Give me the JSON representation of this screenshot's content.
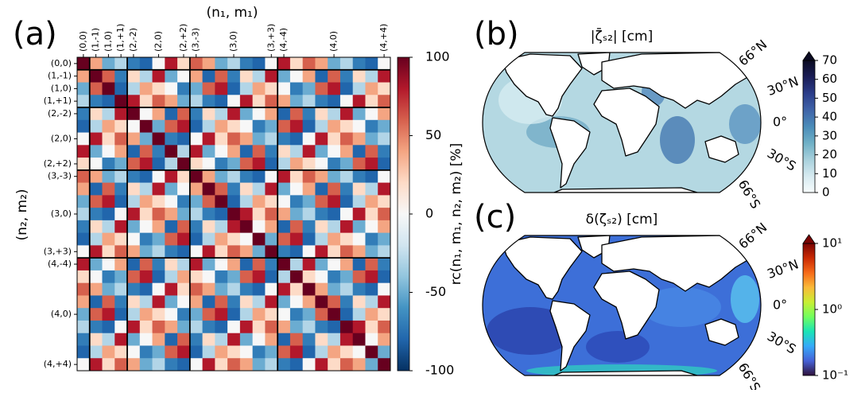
{
  "chart_data": [
    {
      "type": "heatmap",
      "panel": "(a)",
      "x_label": "(n₁, m₁)",
      "y_label": "(n₂, m₂)",
      "categories": [
        "(0,0)",
        "(1,-1)",
        "(1,0)",
        "(1,+1)",
        "(2,-2)",
        null,
        "(2,0)",
        null,
        "(2,+2)",
        "(3,-3)",
        null,
        null,
        "(3,0)",
        null,
        null,
        "(3,+3)",
        "(4,-4)",
        null,
        null,
        null,
        "(4,0)",
        null,
        null,
        null,
        "(4,+4)"
      ],
      "z": [
        [
          100,
          40,
          -50,
          -30,
          -70,
          -80,
          0,
          80,
          20,
          60,
          40,
          -50,
          -30,
          -70,
          -80,
          0,
          80,
          20,
          60,
          40,
          -50,
          -30,
          -70,
          -80,
          0
        ],
        [
          40,
          100,
          60,
          -70,
          20,
          -30,
          80,
          -50,
          0,
          40,
          -80,
          60,
          -70,
          20,
          -30,
          80,
          -50,
          0,
          40,
          -80,
          60,
          -70,
          20,
          -30,
          80
        ],
        [
          -50,
          60,
          100,
          -80,
          -30,
          40,
          20,
          0,
          -70,
          -50,
          60,
          80,
          -80,
          -30,
          40,
          20,
          0,
          -70,
          -50,
          60,
          80,
          -80,
          -30,
          40,
          20
        ],
        [
          -30,
          -70,
          -80,
          100,
          80,
          20,
          60,
          40,
          -50,
          -30,
          -70,
          -80,
          0,
          80,
          20,
          60,
          40,
          -50,
          -30,
          -70,
          -80,
          0,
          80,
          20,
          60
        ],
        [
          -70,
          20,
          -30,
          80,
          100,
          0,
          40,
          -80,
          60,
          -70,
          20,
          -30,
          80,
          -50,
          0,
          40,
          -80,
          60,
          -70,
          20,
          -30,
          80,
          -50,
          0,
          40
        ],
        [
          -80,
          -30,
          40,
          20,
          0,
          100,
          -50,
          60,
          80,
          -80,
          -30,
          40,
          20,
          0,
          -70,
          -50,
          60,
          80,
          -80,
          -30,
          40,
          20,
          0,
          -70,
          -50
        ],
        [
          0,
          80,
          20,
          60,
          40,
          -50,
          100,
          -70,
          -80,
          0,
          80,
          20,
          60,
          40,
          -50,
          -30,
          -70,
          -80,
          0,
          80,
          20,
          60,
          40,
          -50,
          -30
        ],
        [
          80,
          -50,
          0,
          40,
          -80,
          60,
          -70,
          100,
          -30,
          80,
          -50,
          0,
          40,
          -80,
          60,
          -70,
          20,
          -30,
          80,
          -50,
          0,
          40,
          -80,
          60,
          -70
        ],
        [
          20,
          0,
          -70,
          -50,
          60,
          80,
          -80,
          -30,
          100,
          20,
          0,
          -70,
          -50,
          60,
          80,
          -80,
          -30,
          40,
          20,
          0,
          -70,
          -50,
          60,
          80,
          -80
        ],
        [
          60,
          40,
          -50,
          -30,
          -70,
          -80,
          0,
          80,
          20,
          100,
          40,
          -50,
          -30,
          -70,
          -80,
          0,
          80,
          20,
          60,
          40,
          -50,
          -30,
          -70,
          -80,
          0
        ],
        [
          40,
          -80,
          60,
          -70,
          20,
          -30,
          80,
          -50,
          0,
          40,
          100,
          60,
          -70,
          20,
          -30,
          80,
          -50,
          0,
          40,
          -80,
          60,
          -70,
          20,
          -30,
          80
        ],
        [
          -50,
          60,
          80,
          -80,
          -30,
          40,
          20,
          0,
          -70,
          -50,
          60,
          100,
          -80,
          -30,
          40,
          20,
          0,
          -70,
          -50,
          60,
          80,
          -80,
          -30,
          40,
          20
        ],
        [
          -30,
          -70,
          -80,
          0,
          80,
          20,
          60,
          40,
          -50,
          -30,
          -70,
          -80,
          100,
          80,
          20,
          60,
          40,
          -50,
          -30,
          -70,
          -80,
          0,
          80,
          20,
          60
        ],
        [
          -70,
          20,
          -30,
          80,
          -50,
          0,
          40,
          -80,
          60,
          -70,
          20,
          -30,
          80,
          100,
          0,
          40,
          -80,
          60,
          -70,
          20,
          -30,
          80,
          -50,
          0,
          40
        ],
        [
          -80,
          -30,
          40,
          20,
          0,
          -70,
          -50,
          60,
          80,
          -80,
          -30,
          40,
          20,
          0,
          100,
          -50,
          60,
          80,
          -80,
          -30,
          40,
          20,
          0,
          -70,
          -50
        ],
        [
          0,
          80,
          20,
          60,
          40,
          -50,
          -30,
          -70,
          -80,
          0,
          80,
          20,
          60,
          40,
          -50,
          100,
          -70,
          -80,
          0,
          80,
          20,
          60,
          40,
          -50,
          -30
        ],
        [
          80,
          -50,
          0,
          40,
          -80,
          60,
          -70,
          20,
          -30,
          80,
          -50,
          0,
          40,
          -80,
          60,
          -70,
          100,
          -30,
          80,
          -50,
          0,
          40,
          -80,
          60,
          -70
        ],
        [
          20,
          0,
          -70,
          -50,
          60,
          80,
          -80,
          -30,
          40,
          20,
          0,
          -70,
          -50,
          60,
          80,
          -80,
          -30,
          100,
          20,
          0,
          -70,
          -50,
          60,
          80,
          -80
        ],
        [
          60,
          40,
          -50,
          -30,
          -70,
          -80,
          0,
          80,
          20,
          60,
          40,
          -50,
          -30,
          -70,
          -80,
          0,
          80,
          20,
          100,
          40,
          -50,
          -30,
          -70,
          -80,
          0
        ],
        [
          40,
          -80,
          60,
          -70,
          20,
          -30,
          80,
          -50,
          0,
          40,
          -80,
          60,
          -70,
          20,
          -30,
          80,
          -50,
          0,
          40,
          100,
          60,
          -70,
          20,
          -30,
          80
        ],
        [
          -50,
          60,
          80,
          -80,
          -30,
          40,
          20,
          0,
          -70,
          -50,
          60,
          80,
          -80,
          -30,
          40,
          20,
          0,
          -70,
          -50,
          60,
          100,
          -80,
          -30,
          40,
          20
        ],
        [
          -30,
          -70,
          -80,
          0,
          80,
          20,
          60,
          40,
          -50,
          -30,
          -70,
          -80,
          0,
          80,
          20,
          60,
          40,
          -50,
          -30,
          -70,
          -80,
          100,
          80,
          20,
          60
        ],
        [
          -70,
          20,
          -30,
          80,
          -50,
          0,
          40,
          -80,
          60,
          -70,
          20,
          -30,
          80,
          -50,
          0,
          40,
          -80,
          60,
          -70,
          20,
          -30,
          80,
          100,
          0,
          40
        ],
        [
          -80,
          -30,
          40,
          20,
          0,
          -70,
          -50,
          60,
          80,
          -80,
          -30,
          40,
          20,
          0,
          -70,
          -50,
          60,
          80,
          -80,
          -30,
          40,
          20,
          0,
          100,
          -50
        ],
        [
          0,
          80,
          20,
          60,
          40,
          -50,
          -30,
          -70,
          -80,
          0,
          80,
          20,
          60,
          40,
          -50,
          -30,
          -70,
          -80,
          0,
          80,
          20,
          60,
          40,
          -50,
          100
        ]
      ],
      "colorbar": {
        "label": "rc(n₁, m₁, n₂, m₂) [%]",
        "lim": [
          -100,
          100
        ],
        "ticks": [
          -100,
          -50,
          0,
          50,
          100
        ],
        "colors": [
          "#053061",
          "#2166ac",
          "#4393c3",
          "#92c5de",
          "#d1e5f0",
          "#f7f7f7",
          "#fddbc7",
          "#f4a582",
          "#d6604d",
          "#b2182b",
          "#67001f"
        ]
      }
    },
    {
      "type": "map",
      "panel": "(b)",
      "title": "|ζ̄ₛ₂| [cm]",
      "lat_labels": [
        "66°N",
        "30°N",
        "0°",
        "30°S",
        "66°S"
      ],
      "colorbar": {
        "lim": [
          0,
          70
        ],
        "ticks": [
          0,
          10,
          20,
          30,
          40,
          50,
          60,
          70
        ],
        "extend": "max",
        "colors": [
          "#f7fcfd",
          "#d6eaf0",
          "#a8d0dc",
          "#6fb0c6",
          "#4a8cb9",
          "#3f63a8",
          "#2b3d8a",
          "#1a1d57",
          "#0b0b22"
        ]
      }
    },
    {
      "type": "map",
      "panel": "(c)",
      "title": "δ(ζₛ₂) [cm]",
      "lat_labels": [
        "66°N",
        "30°N",
        "0°",
        "30°S",
        "66°S"
      ],
      "colorbar": {
        "scale": "log",
        "lim": [
          0.1,
          10
        ],
        "ticks": [
          {
            "value": 0.1,
            "label": "10⁻¹"
          },
          {
            "value": 1,
            "label": "10⁰"
          },
          {
            "value": 10,
            "label": "10¹"
          }
        ],
        "extend": "max",
        "colors": [
          "#30123b",
          "#4662d7",
          "#36aaf9",
          "#1ae4b6",
          "#72fe5e",
          "#c8ef34",
          "#faba39",
          "#f66b19",
          "#ca2a04",
          "#7a0403"
        ]
      }
    }
  ]
}
